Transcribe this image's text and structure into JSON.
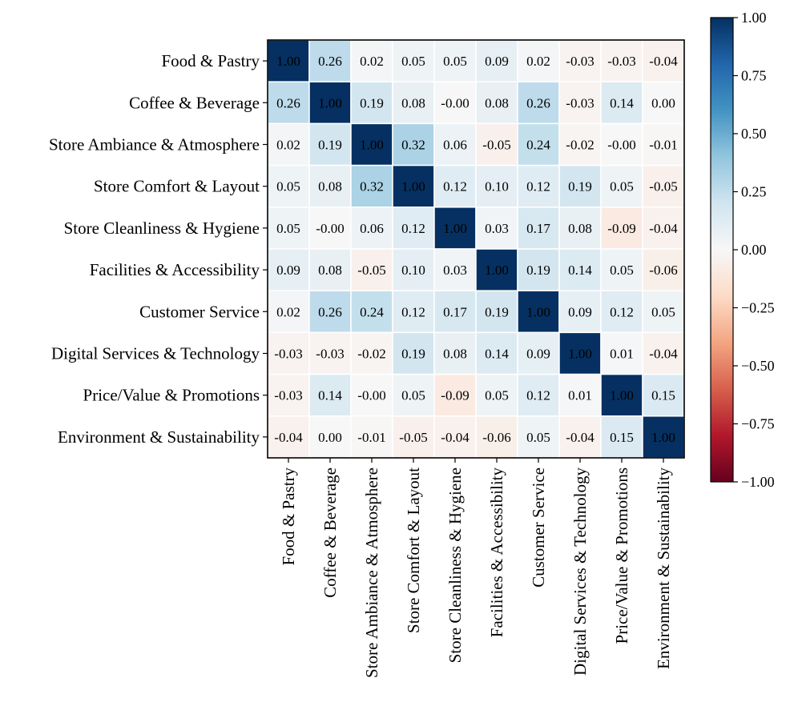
{
  "chart_data": {
    "type": "heatmap",
    "title": "",
    "xlabel": "",
    "ylabel": "",
    "row_labels": [
      "Food & Pastry",
      "Coffee & Beverage",
      "Store Ambiance & Atmosphere",
      "Store Comfort & Layout",
      "Store Cleanliness & Hygiene",
      "Facilities & Accessibility",
      "Customer Service",
      "Digital Services & Technology",
      "Price/Value & Promotions",
      "Environment & Sustainability"
    ],
    "col_labels": [
      "Food & Pastry",
      "Coffee & Beverage",
      "Store Ambiance & Atmosphere",
      "Store Comfort & Layout",
      "Store Cleanliness & Hygiene",
      "Facilities & Accessibility",
      "Customer Service",
      "Digital Services & Technology",
      "Price/Value & Promotions",
      "Environment & Sustainability"
    ],
    "values": [
      [
        1.0,
        0.26,
        0.02,
        0.05,
        0.05,
        0.09,
        0.02,
        -0.03,
        -0.03,
        -0.04
      ],
      [
        0.26,
        1.0,
        0.19,
        0.08,
        -0.0,
        0.08,
        0.26,
        -0.03,
        0.14,
        0.0
      ],
      [
        0.02,
        0.19,
        1.0,
        0.32,
        0.06,
        -0.05,
        0.24,
        -0.02,
        -0.0,
        -0.01
      ],
      [
        0.05,
        0.08,
        0.32,
        1.0,
        0.12,
        0.1,
        0.12,
        0.19,
        0.05,
        -0.05
      ],
      [
        0.05,
        -0.0,
        0.06,
        0.12,
        1.0,
        0.03,
        0.17,
        0.08,
        -0.09,
        -0.04
      ],
      [
        0.09,
        0.08,
        -0.05,
        0.1,
        0.03,
        1.0,
        0.19,
        0.14,
        0.05,
        -0.06
      ],
      [
        0.02,
        0.26,
        0.24,
        0.12,
        0.17,
        0.19,
        1.0,
        0.09,
        0.12,
        0.05
      ],
      [
        -0.03,
        -0.03,
        -0.02,
        0.19,
        0.08,
        0.14,
        0.09,
        1.0,
        0.01,
        -0.04
      ],
      [
        -0.03,
        0.14,
        -0.0,
        0.05,
        -0.09,
        0.05,
        0.12,
        0.01,
        1.0,
        0.15
      ],
      [
        -0.04,
        0.0,
        -0.01,
        -0.05,
        -0.04,
        -0.06,
        0.05,
        -0.04,
        0.15,
        1.0
      ]
    ],
    "cell_labels": [
      [
        "1.00",
        "0.26",
        "0.02",
        "0.05",
        "0.05",
        "0.09",
        "0.02",
        "-0.03",
        "-0.03",
        "-0.04"
      ],
      [
        "0.26",
        "1.00",
        "0.19",
        "0.08",
        "-0.00",
        "0.08",
        "0.26",
        "-0.03",
        "0.14",
        "0.00"
      ],
      [
        "0.02",
        "0.19",
        "1.00",
        "0.32",
        "0.06",
        "-0.05",
        "0.24",
        "-0.02",
        "-0.00",
        "-0.01"
      ],
      [
        "0.05",
        "0.08",
        "0.32",
        "1.00",
        "0.12",
        "0.10",
        "0.12",
        "0.19",
        "0.05",
        "-0.05"
      ],
      [
        "0.05",
        "-0.00",
        "0.06",
        "0.12",
        "1.00",
        "0.03",
        "0.17",
        "0.08",
        "-0.09",
        "-0.04"
      ],
      [
        "0.09",
        "0.08",
        "-0.05",
        "0.10",
        "0.03",
        "1.00",
        "0.19",
        "0.14",
        "0.05",
        "-0.06"
      ],
      [
        "0.02",
        "0.26",
        "0.24",
        "0.12",
        "0.17",
        "0.19",
        "1.00",
        "0.09",
        "0.12",
        "0.05"
      ],
      [
        "-0.03",
        "-0.03",
        "-0.02",
        "0.19",
        "0.08",
        "0.14",
        "0.09",
        "1.00",
        "0.01",
        "-0.04"
      ],
      [
        "-0.03",
        "0.14",
        "-0.00",
        "0.05",
        "-0.09",
        "0.05",
        "0.12",
        "0.01",
        "1.00",
        "0.15"
      ],
      [
        "-0.04",
        "0.00",
        "-0.01",
        "-0.05",
        "-0.04",
        "-0.06",
        "0.05",
        "-0.04",
        "0.15",
        "1.00"
      ]
    ],
    "colorbar": {
      "colormap": "RdBu",
      "range": [
        -1.0,
        1.0
      ],
      "ticks": [
        1.0,
        0.75,
        0.5,
        0.25,
        0.0,
        -0.25,
        -0.5,
        -0.75,
        -1.0
      ],
      "tick_labels": [
        "1.00",
        "0.75",
        "0.50",
        "0.25",
        "0.00",
        "−0.25",
        "−0.50",
        "−0.75",
        "−1.00"
      ]
    },
    "colors": {
      "low": "#67001f",
      "mid": "#f7f7f7",
      "high": "#053061",
      "cell_border": "#ffffff",
      "axis": "#000000"
    }
  }
}
